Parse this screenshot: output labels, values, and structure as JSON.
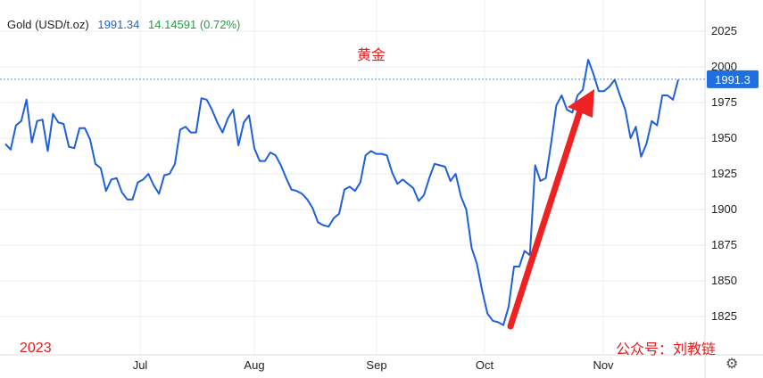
{
  "header": {
    "name": "Gold (USD/t.oz)",
    "price": "1991.34",
    "change": "14.14591 (0.72%)"
  },
  "annotations": {
    "title_cn": "黄金",
    "year": "2023",
    "watermark": "公众号：刘教链"
  },
  "colors": {
    "line": "#1f5fd8",
    "arrow": "#ee2222",
    "annotation": "#e02020",
    "change_positive": "#1aa33a",
    "price_tag_bg": "#1f6fe0",
    "grid": "#e8e8e8"
  },
  "icons": {
    "settings": "gear-icon"
  },
  "chart_data": {
    "type": "line",
    "title": "黄金",
    "xlabel": "",
    "ylabel": "",
    "x_tick_labels": [
      "Jul",
      "Aug",
      "Sep",
      "Oct",
      "Nov"
    ],
    "y_ticks": [
      1825,
      1850,
      1875,
      1900,
      1925,
      1950,
      1975,
      2000,
      2025
    ],
    "ylim": [
      1805,
      2040
    ],
    "grid": "horizontal",
    "last_value_tag": "1991.3",
    "last_value": 1991.34,
    "series": [
      {
        "values": [
          1946,
          1942,
          1959,
          1962,
          1977,
          1947,
          1962,
          1963,
          1941,
          1967,
          1961,
          1960,
          1944,
          1943,
          1957,
          1957,
          1949,
          1932,
          1929,
          1913,
          1921,
          1922,
          1912,
          1907,
          1907,
          1919,
          1921,
          1925,
          1917,
          1911,
          1924,
          1925,
          1932,
          1956,
          1958,
          1954,
          1954,
          1978,
          1977,
          1970,
          1961,
          1954,
          1964,
          1970,
          1945,
          1961,
          1966,
          1943,
          1934,
          1934,
          1940,
          1938,
          1931,
          1922,
          1914,
          1913,
          1911,
          1907,
          1901,
          1891,
          1889,
          1888,
          1894,
          1897,
          1914,
          1916,
          1913,
          1919,
          1938,
          1941,
          1939,
          1939,
          1938,
          1926,
          1918,
          1921,
          1918,
          1915,
          1906,
          1910,
          1922,
          1932,
          1931,
          1930,
          1920,
          1925,
          1909,
          1900,
          1873,
          1862,
          1843,
          1827,
          1822,
          1821,
          1819,
          1832,
          1860,
          1860,
          1871,
          1868,
          1931,
          1920,
          1922,
          1946,
          1973,
          1980,
          1970,
          1968,
          1980,
          1984,
          2005,
          1995,
          1983,
          1983,
          1986,
          1991,
          1980,
          1970,
          1950,
          1958,
          1937,
          1946,
          1962,
          1959,
          1980,
          1980,
          1977,
          1991
        ]
      }
    ]
  }
}
